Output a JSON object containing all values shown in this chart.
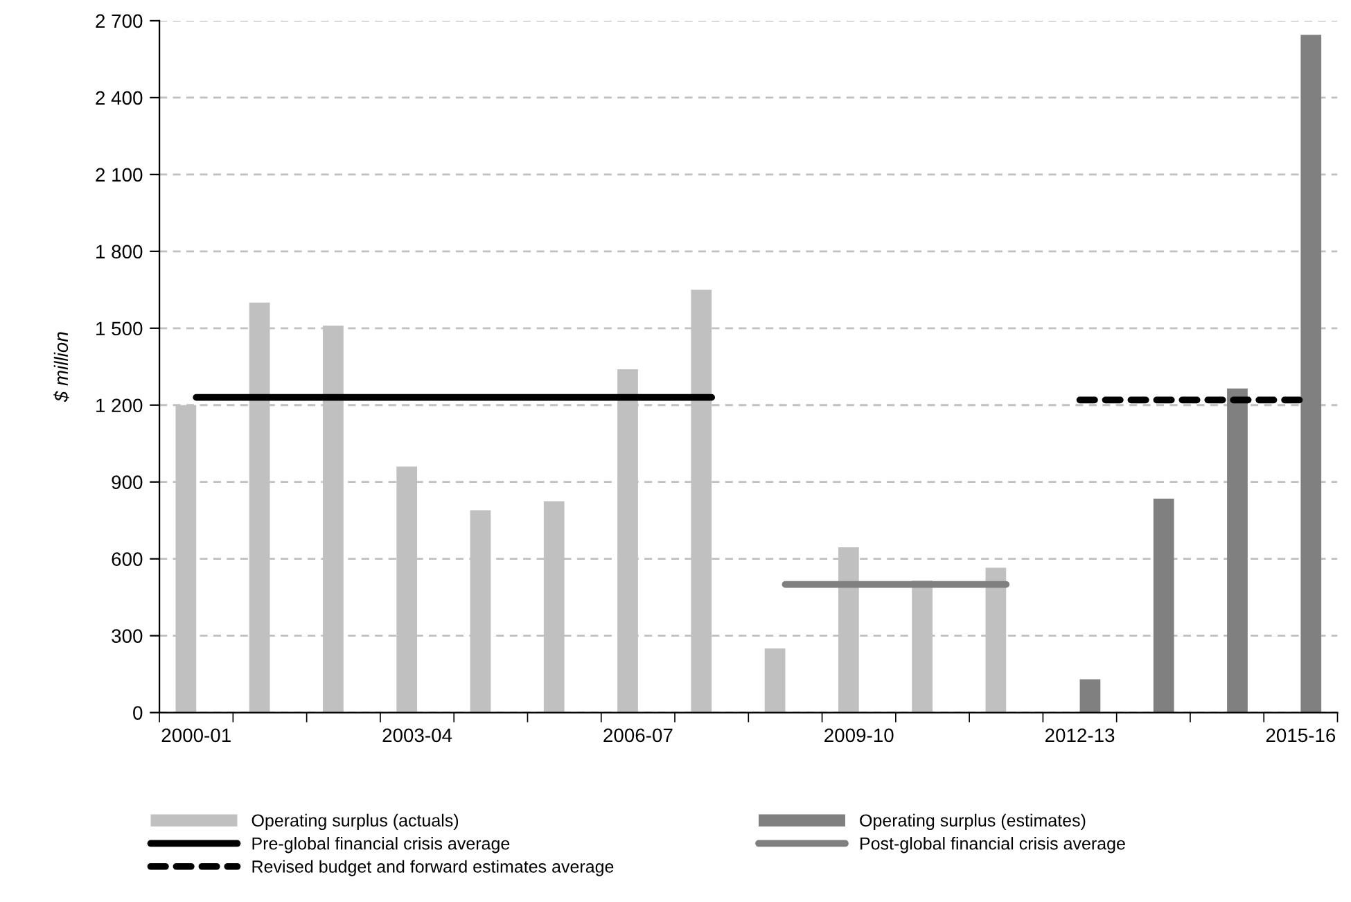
{
  "chart_data": {
    "type": "bar",
    "ylabel": "$ million",
    "categories": [
      "2000-01",
      null,
      null,
      "2003-04",
      null,
      null,
      "2006-07",
      null,
      null,
      "2009-10",
      null,
      null,
      "2012-13",
      null,
      null,
      "2015-16"
    ],
    "series": [
      {
        "name": "Operating surplus (actuals)",
        "color": "#c0c0c0",
        "values": [
          1200,
          1600,
          1510,
          960,
          790,
          825,
          1340,
          1650,
          250,
          645,
          515,
          565,
          null,
          null,
          null,
          null
        ]
      },
      {
        "name": "Operating surplus (estimates)",
        "color": "#808080",
        "values": [
          null,
          null,
          null,
          null,
          null,
          null,
          null,
          null,
          null,
          null,
          null,
          null,
          130,
          835,
          1265,
          2645
        ]
      },
      {
        "name": "Pre-global financial crisis average",
        "type": "line",
        "color": "#000000",
        "line_style": "solid",
        "values": [
          1230,
          1230,
          1230,
          1230,
          1230,
          1230,
          1230,
          1230,
          null,
          null,
          null,
          null,
          null,
          null,
          null,
          null
        ]
      },
      {
        "name": "Post-global financial crisis average",
        "type": "line",
        "color": "#808080",
        "line_style": "solid",
        "values": [
          null,
          null,
          null,
          null,
          null,
          null,
          null,
          null,
          500,
          500,
          500,
          500,
          null,
          null,
          null,
          null
        ]
      },
      {
        "name": "Revised budget and forward estimates average",
        "type": "line",
        "color": "#000000",
        "line_style": "dashed",
        "values": [
          null,
          null,
          null,
          null,
          null,
          null,
          null,
          null,
          null,
          null,
          null,
          null,
          1220,
          1220,
          1220,
          1220
        ]
      }
    ],
    "ylim": [
      0,
      2700
    ],
    "yticks": [
      0,
      300,
      600,
      900,
      {
        "value": 1200,
        "label": "1 200"
      },
      {
        "value": 1500,
        "label": "1 500"
      },
      {
        "value": 1800,
        "label": "1 800"
      },
      {
        "value": 2100,
        "label": "2 100"
      },
      {
        "value": 2400,
        "label": "2 400"
      },
      {
        "value": 2700,
        "label": "2 700"
      }
    ],
    "grid": "y",
    "legend": "bottom"
  }
}
